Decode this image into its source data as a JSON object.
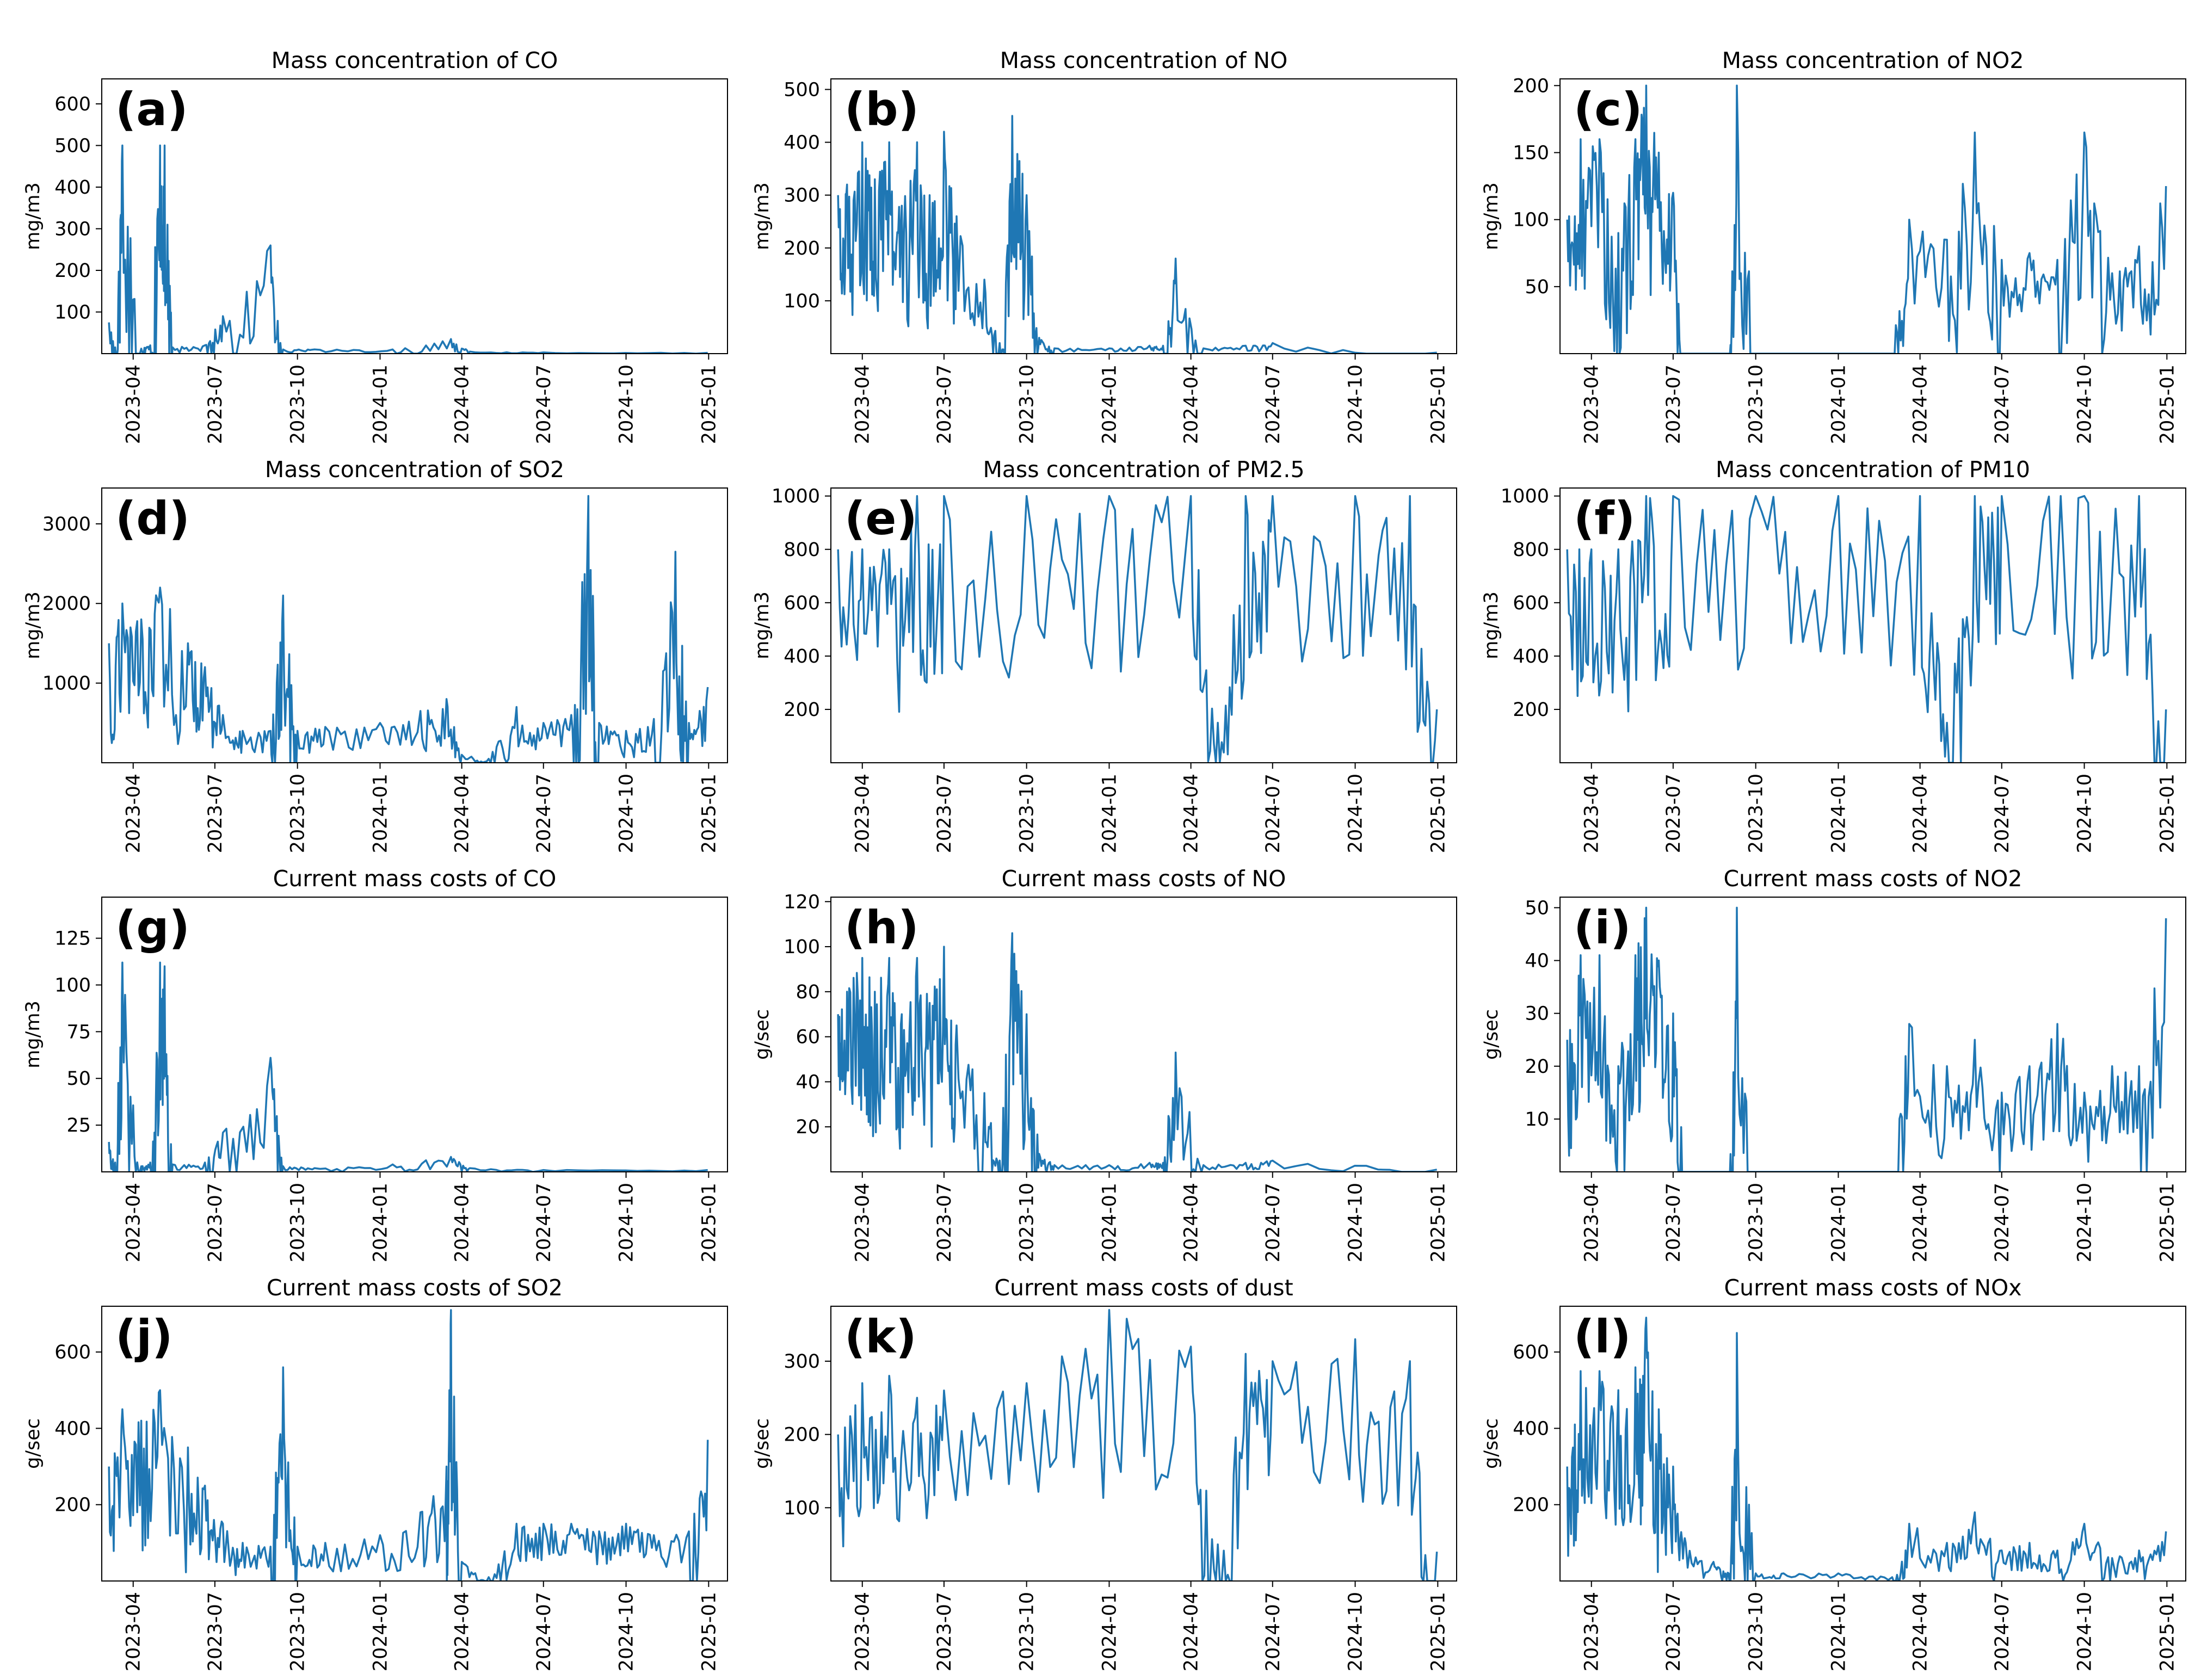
{
  "figure": {
    "date_ticks": [
      "2023-04",
      "2023-07",
      "2023-10",
      "2024-01",
      "2024-04",
      "2024-07",
      "2024-10",
      "2025-01"
    ],
    "line_color": "#1f77b4"
  },
  "chart_data": [
    {
      "id": "a",
      "label": "(a)",
      "type": "line",
      "title": "Mass concentration of CO",
      "ylabel": "mg/m3",
      "xlim": [
        "2023-02-25",
        "2025-01-22"
      ],
      "ylim": [
        0,
        660
      ],
      "yticks": [
        100,
        200,
        300,
        400,
        500,
        600
      ],
      "series": [
        {
          "name": "CO",
          "x": [
            "2023-03-05",
            "2023-03-12",
            "2023-03-20",
            "2023-04-10",
            "2023-04-20",
            "2023-05-01",
            "2023-05-06",
            "2023-05-15",
            "2023-06-20",
            "2023-07-10",
            "2023-09-01",
            "2023-09-15",
            "2023-10-20",
            "2024-01-15",
            "2024-03-20",
            "2024-04-10",
            "2024-07-01",
            "2024-12-31"
          ],
          "y": [
            75,
            15,
            500,
            12,
            20,
            500,
            500,
            15,
            20,
            90,
            260,
            10,
            10,
            10,
            35,
            5,
            3,
            2
          ]
        }
      ]
    },
    {
      "id": "b",
      "label": "(b)",
      "type": "line",
      "title": "Mass concentration of NO",
      "ylabel": "mg/m3",
      "xlim": [
        "2023-02-25",
        "2025-01-22"
      ],
      "ylim": [
        0,
        520
      ],
      "yticks": [
        100,
        200,
        300,
        400,
        500
      ],
      "series": [
        {
          "name": "NO",
          "x": [
            "2023-03-05",
            "2023-03-15",
            "2023-04-01",
            "2023-04-15",
            "2023-05-01",
            "2023-05-15",
            "2023-06-01",
            "2023-06-15",
            "2023-07-01",
            "2023-07-15",
            "2023-08-15",
            "2023-09-01",
            "2023-09-15",
            "2023-10-01",
            "2023-10-15",
            "2023-11-01",
            "2024-01-01",
            "2024-02-15",
            "2024-03-01",
            "2024-03-15",
            "2024-04-15",
            "2024-06-01",
            "2024-07-01",
            "2024-12-31"
          ],
          "y": [
            300,
            320,
            400,
            330,
            400,
            280,
            400,
            300,
            420,
            260,
            140,
            20,
            450,
            300,
            30,
            10,
            10,
            15,
            15,
            180,
            10,
            15,
            20,
            2
          ]
        }
      ]
    },
    {
      "id": "c",
      "label": "(c)",
      "type": "line",
      "title": "Mass concentration of NO2",
      "ylabel": "mg/m3",
      "xlim": [
        "2023-02-25",
        "2025-01-22"
      ],
      "ylim": [
        0,
        205
      ],
      "yticks": [
        50,
        100,
        150,
        200
      ],
      "series": [
        {
          "name": "NO2",
          "x": [
            "2023-03-05",
            "2023-03-20",
            "2023-04-10",
            "2023-05-01",
            "2023-05-20",
            "2023-06-01",
            "2023-06-15",
            "2023-07-01",
            "2023-07-15",
            "2023-08-15",
            "2023-09-01",
            "2023-09-10",
            "2023-10-01",
            "2024-03-01",
            "2024-03-20",
            "2024-05-01",
            "2024-06-01",
            "2024-07-01",
            "2024-08-01",
            "2024-09-01",
            "2024-10-01",
            "2024-11-01",
            "2024-12-01",
            "2024-12-31"
          ],
          "y": [
            100,
            160,
            160,
            90,
            160,
            200,
            150,
            120,
            0,
            0,
            0,
            200,
            0,
            0,
            100,
            85,
            165,
            70,
            75,
            70,
            165,
            60,
            80,
            125
          ]
        }
      ]
    },
    {
      "id": "d",
      "label": "(d)",
      "type": "line",
      "title": "Mass concentration of SO2",
      "ylabel": "mg/m3",
      "xlim": [
        "2023-02-25",
        "2025-01-22"
      ],
      "ylim": [
        0,
        3450
      ],
      "yticks": [
        1000,
        2000,
        3000
      ],
      "series": [
        {
          "name": "SO2",
          "x": [
            "2023-03-05",
            "2023-03-20",
            "2023-04-10",
            "2023-05-01",
            "2023-06-01",
            "2023-06-20",
            "2023-07-10",
            "2023-08-01",
            "2023-09-01",
            "2023-09-15",
            "2023-10-01",
            "2023-11-01",
            "2024-01-01",
            "2024-02-15",
            "2024-03-15",
            "2024-04-01",
            "2024-05-01",
            "2024-06-01",
            "2024-07-01",
            "2024-08-01",
            "2024-08-20",
            "2024-09-01",
            "2024-10-01",
            "2024-11-01",
            "2024-11-25",
            "2024-12-10",
            "2024-12-31"
          ],
          "y": [
            1500,
            2000,
            1800,
            2200,
            1500,
            1200,
            600,
            400,
            400,
            2100,
            400,
            450,
            500,
            650,
            800,
            100,
            50,
            700,
            500,
            600,
            3350,
            500,
            400,
            550,
            2650,
            500,
            950
          ]
        }
      ]
    },
    {
      "id": "e",
      "label": "(e)",
      "type": "line",
      "title": "Mass concentration of PM2.5",
      "ylabel": "mg/m3",
      "xlim": [
        "2023-02-25",
        "2025-01-22"
      ],
      "ylim": [
        0,
        1030
      ],
      "yticks": [
        200,
        400,
        600,
        800,
        1000
      ],
      "series": [
        {
          "name": "PM2.5",
          "x": [
            "2023-03-05",
            "2023-04-01",
            "2023-05-01",
            "2023-06-01",
            "2023-07-01",
            "2023-10-01",
            "2024-01-01",
            "2024-04-01",
            "2024-05-01",
            "2024-06-01",
            "2024-07-01",
            "2024-10-01",
            "2024-12-01",
            "2024-12-31"
          ],
          "y": [
            800,
            800,
            800,
            1000,
            1000,
            1000,
            1000,
            1000,
            150,
            1000,
            1000,
            1000,
            1000,
            200
          ]
        }
      ]
    },
    {
      "id": "f",
      "label": "(f)",
      "type": "line",
      "title": "Mass concentration of PM10",
      "ylabel": "mg/m3",
      "xlim": [
        "2023-02-25",
        "2025-01-22"
      ],
      "ylim": [
        0,
        1030
      ],
      "yticks": [
        200,
        400,
        600,
        800,
        1000
      ],
      "series": [
        {
          "name": "PM10",
          "x": [
            "2023-03-05",
            "2023-04-01",
            "2023-05-01",
            "2023-06-01",
            "2023-07-01",
            "2023-10-01",
            "2024-01-01",
            "2024-04-01",
            "2024-05-01",
            "2024-06-01",
            "2024-07-01",
            "2024-10-01",
            "2024-12-01",
            "2024-12-31"
          ],
          "y": [
            800,
            800,
            800,
            1000,
            1000,
            1000,
            1000,
            1000,
            150,
            1000,
            1000,
            1000,
            1000,
            200
          ]
        }
      ]
    },
    {
      "id": "g",
      "label": "(g)",
      "type": "line",
      "title": "Current mass costs of CO",
      "ylabel": "mg/m3",
      "xlim": [
        "2023-02-25",
        "2025-01-22"
      ],
      "ylim": [
        0,
        147
      ],
      "yticks": [
        25,
        50,
        75,
        100,
        125
      ],
      "series": [
        {
          "name": "CO",
          "x": [
            "2023-03-05",
            "2023-03-12",
            "2023-03-20",
            "2023-04-10",
            "2023-04-20",
            "2023-05-01",
            "2023-05-06",
            "2023-05-15",
            "2023-06-20",
            "2023-07-10",
            "2023-09-01",
            "2023-09-15",
            "2023-10-20",
            "2024-01-15",
            "2024-03-20",
            "2024-04-10",
            "2024-07-01",
            "2024-12-31"
          ],
          "y": [
            16,
            5,
            112,
            3,
            5,
            112,
            110,
            4,
            5,
            21,
            61,
            3,
            2,
            4,
            8,
            2,
            1,
            1
          ]
        }
      ]
    },
    {
      "id": "h",
      "label": "(h)",
      "type": "line",
      "title": "Current mass costs of NO",
      "ylabel": "g/sec",
      "xlim": [
        "2023-02-25",
        "2025-01-22"
      ],
      "ylim": [
        0,
        122
      ],
      "yticks": [
        20,
        40,
        60,
        80,
        100,
        120
      ],
      "series": [
        {
          "name": "NO",
          "x": [
            "2023-03-05",
            "2023-03-15",
            "2023-04-01",
            "2023-04-15",
            "2023-05-01",
            "2023-05-15",
            "2023-06-01",
            "2023-06-15",
            "2023-07-01",
            "2023-07-15",
            "2023-08-15",
            "2023-09-01",
            "2023-09-15",
            "2023-10-01",
            "2023-10-15",
            "2023-11-01",
            "2024-01-01",
            "2024-02-15",
            "2024-03-01",
            "2024-03-15",
            "2024-04-15",
            "2024-06-01",
            "2024-07-01",
            "2024-12-31"
          ],
          "y": [
            70,
            80,
            95,
            80,
            95,
            70,
            95,
            75,
            100,
            65,
            35,
            5,
            106,
            70,
            8,
            3,
            3,
            4,
            4,
            53,
            3,
            4,
            5,
            1
          ]
        }
      ]
    },
    {
      "id": "i",
      "label": "(i)",
      "type": "line",
      "title": "Current mass costs of NO2",
      "ylabel": "g/sec",
      "xlim": [
        "2023-02-25",
        "2025-01-22"
      ],
      "ylim": [
        0,
        52
      ],
      "yticks": [
        10,
        20,
        30,
        40,
        50
      ],
      "series": [
        {
          "name": "NO2",
          "x": [
            "2023-03-05",
            "2023-03-20",
            "2023-04-10",
            "2023-05-01",
            "2023-05-20",
            "2023-06-01",
            "2023-06-15",
            "2023-07-01",
            "2023-07-15",
            "2023-08-15",
            "2023-09-01",
            "2023-09-10",
            "2023-10-01",
            "2024-03-01",
            "2024-03-20",
            "2024-05-01",
            "2024-06-01",
            "2024-07-01",
            "2024-08-01",
            "2024-09-01",
            "2024-10-01",
            "2024-11-01",
            "2024-12-01",
            "2024-12-31"
          ],
          "y": [
            25,
            41,
            41,
            20,
            41,
            50,
            40,
            30,
            0,
            0,
            0,
            50,
            0,
            0,
            28,
            20,
            25,
            15,
            20,
            28,
            15,
            20,
            20,
            48
          ]
        }
      ]
    },
    {
      "id": "j",
      "label": "(j)",
      "type": "line",
      "title": "Current mass costs of SO2",
      "ylabel": "g/sec",
      "xlim": [
        "2023-02-25",
        "2025-01-22"
      ],
      "ylim": [
        0,
        720
      ],
      "yticks": [
        200,
        400,
        600
      ],
      "series": [
        {
          "name": "SO2",
          "x": [
            "2023-03-05",
            "2023-03-20",
            "2023-04-10",
            "2023-05-01",
            "2023-06-01",
            "2023-06-20",
            "2023-07-10",
            "2023-08-01",
            "2023-09-01",
            "2023-09-15",
            "2023-10-01",
            "2023-11-01",
            "2024-01-01",
            "2024-02-15",
            "2024-03-15",
            "2024-03-20",
            "2024-04-01",
            "2024-05-01",
            "2024-06-01",
            "2024-07-01",
            "2024-08-01",
            "2024-09-01",
            "2024-10-01",
            "2024-11-01",
            "2024-12-10",
            "2024-12-31"
          ],
          "y": [
            300,
            450,
            420,
            500,
            350,
            250,
            150,
            100,
            90,
            560,
            90,
            100,
            120,
            180,
            300,
            710,
            50,
            10,
            150,
            150,
            150,
            130,
            150,
            120,
            130,
            370
          ]
        }
      ]
    },
    {
      "id": "k",
      "label": "(k)",
      "type": "line",
      "title": "Current mass costs of dust",
      "ylabel": "g/sec",
      "xlim": [
        "2023-02-25",
        "2025-01-22"
      ],
      "ylim": [
        0,
        375
      ],
      "yticks": [
        100,
        200,
        300
      ],
      "series": [
        {
          "name": "dust",
          "x": [
            "2023-03-05",
            "2023-04-01",
            "2023-05-01",
            "2023-06-01",
            "2023-07-01",
            "2023-10-01",
            "2024-01-01",
            "2024-04-01",
            "2024-05-01",
            "2024-06-01",
            "2024-07-01",
            "2024-10-01",
            "2024-12-01",
            "2024-12-31"
          ],
          "y": [
            200,
            270,
            280,
            250,
            260,
            270,
            370,
            320,
            50,
            310,
            300,
            330,
            300,
            40
          ]
        }
      ]
    },
    {
      "id": "l",
      "label": "(l)",
      "type": "line",
      "title": "Current mass costs of NOx",
      "ylabel": "g/sec",
      "xlim": [
        "2023-02-25",
        "2025-01-22"
      ],
      "ylim": [
        0,
        720
      ],
      "yticks": [
        200,
        400,
        600
      ],
      "series": [
        {
          "name": "NOx",
          "x": [
            "2023-03-05",
            "2023-03-20",
            "2023-04-10",
            "2023-05-01",
            "2023-05-20",
            "2023-06-01",
            "2023-06-15",
            "2023-07-01",
            "2023-07-15",
            "2023-08-15",
            "2023-09-01",
            "2023-09-10",
            "2023-10-01",
            "2023-11-01",
            "2024-01-01",
            "2024-03-01",
            "2024-03-20",
            "2024-05-01",
            "2024-06-01",
            "2024-07-01",
            "2024-08-01",
            "2024-09-01",
            "2024-10-01",
            "2024-11-01",
            "2024-12-01",
            "2024-12-31"
          ],
          "y": [
            300,
            550,
            550,
            500,
            560,
            690,
            450,
            300,
            100,
            50,
            20,
            650,
            20,
            20,
            20,
            10,
            150,
            100,
            180,
            80,
            100,
            80,
            150,
            60,
            80,
            130
          ]
        }
      ]
    }
  ]
}
